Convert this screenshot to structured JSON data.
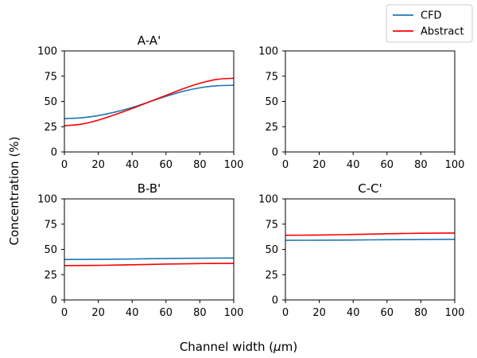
{
  "figure": {
    "ylabel": "Concentration (%)",
    "xlabel_main": "Channel width (",
    "xlabel_mu": "μ",
    "xlabel_unit": "m)"
  },
  "legend": {
    "placement": "top-right",
    "entries": [
      {
        "name": "CFD",
        "color": "#1f77b4"
      },
      {
        "name": "Abstract",
        "color": "#ff0000"
      }
    ]
  },
  "chart_data": [
    {
      "type": "line",
      "title": "A-A'",
      "xlim": [
        0,
        100
      ],
      "ylim": [
        0,
        100
      ],
      "xticks": [
        0,
        20,
        40,
        60,
        80,
        100
      ],
      "yticks": [
        0,
        25,
        50,
        75,
        100
      ],
      "x": [
        0,
        10,
        20,
        30,
        40,
        50,
        60,
        70,
        80,
        90,
        100
      ],
      "series": [
        {
          "name": "CFD",
          "color": "#1f77b4",
          "values": [
            33,
            33.8,
            36,
            39.5,
            44,
            49.5,
            55,
            60,
            63.5,
            65.5,
            66
          ]
        },
        {
          "name": "Abstract",
          "color": "#ff0000",
          "values": [
            26,
            27.5,
            31.5,
            37,
            43,
            49.5,
            56,
            62.5,
            68,
            71.8,
            73
          ]
        }
      ]
    },
    {
      "type": "line",
      "title": "",
      "xlim": [
        0,
        100
      ],
      "ylim": [
        0,
        100
      ],
      "xticks": [
        0,
        20,
        40,
        60,
        80,
        100
      ],
      "yticks": [
        0,
        25,
        50,
        75,
        100
      ],
      "x": [],
      "series": []
    },
    {
      "type": "line",
      "title": "B-B'",
      "xlim": [
        0,
        100
      ],
      "ylim": [
        0,
        100
      ],
      "xticks": [
        0,
        20,
        40,
        60,
        80,
        100
      ],
      "yticks": [
        0,
        25,
        50,
        75,
        100
      ],
      "x": [
        0,
        20,
        40,
        60,
        80,
        100
      ],
      "series": [
        {
          "name": "CFD",
          "color": "#1f77b4",
          "values": [
            40,
            40.2,
            40.5,
            41,
            41.3,
            41.5
          ]
        },
        {
          "name": "Abstract",
          "color": "#ff0000",
          "values": [
            34,
            34.2,
            34.8,
            35.5,
            36,
            36.2
          ]
        }
      ]
    },
    {
      "type": "line",
      "title": "C-C'",
      "xlim": [
        0,
        100
      ],
      "ylim": [
        0,
        100
      ],
      "xticks": [
        0,
        20,
        40,
        60,
        80,
        100
      ],
      "yticks": [
        0,
        25,
        50,
        75,
        100
      ],
      "x": [
        0,
        20,
        40,
        60,
        80,
        100
      ],
      "series": [
        {
          "name": "CFD",
          "color": "#1f77b4",
          "values": [
            59,
            59.1,
            59.3,
            59.6,
            59.8,
            60
          ]
        },
        {
          "name": "Abstract",
          "color": "#ff0000",
          "values": [
            64,
            64.2,
            64.8,
            65.5,
            66,
            66.2
          ]
        }
      ]
    }
  ]
}
